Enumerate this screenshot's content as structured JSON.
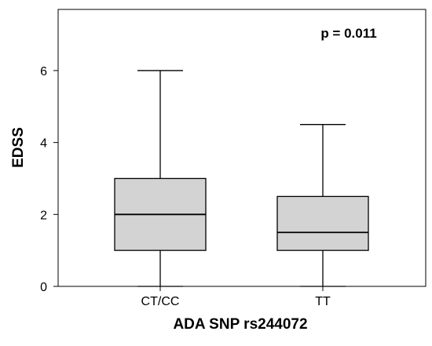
{
  "chart_data": {
    "type": "boxplot",
    "xlabel": "ADA SNP rs244072",
    "ylabel": "EDSS",
    "annotation": "p = 0.011",
    "categories": [
      "CT/CC",
      "TT"
    ],
    "ylim": [
      0,
      7.7
    ],
    "yticks": [
      0,
      2,
      4,
      6
    ],
    "boxes": [
      {
        "category": "CT/CC",
        "min": 0,
        "q1": 1,
        "median": 2,
        "q3": 3,
        "max": 6
      },
      {
        "category": "TT",
        "min": 0,
        "q1": 1,
        "median": 1.5,
        "q3": 2.5,
        "max": 4.5
      }
    ],
    "box_fill": "#d3d3d3",
    "grid": false,
    "legend": "none"
  }
}
